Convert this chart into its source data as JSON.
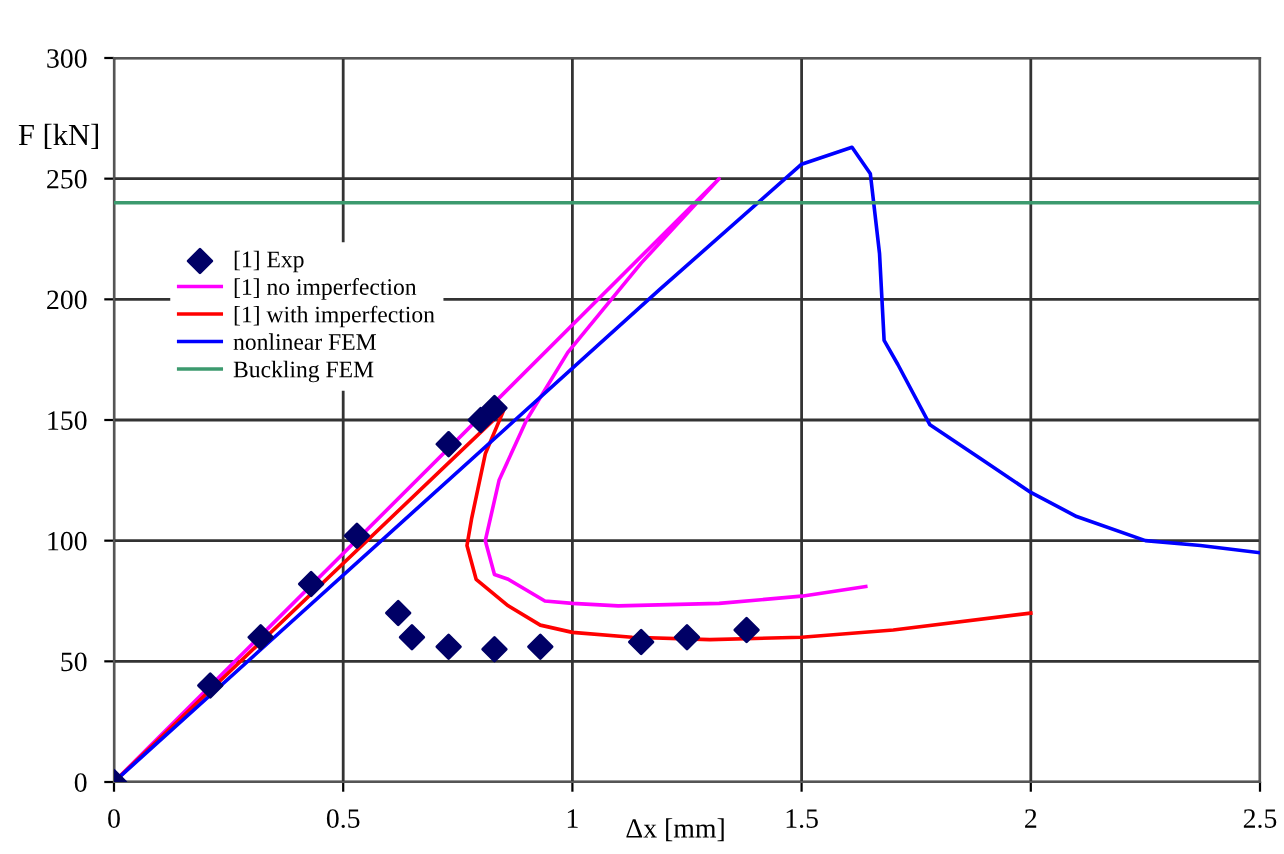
{
  "chart_data": {
    "type": "line",
    "xlabel": "Δx [mm]",
    "ylabel": "F [kN]",
    "xlim": [
      0,
      2.5
    ],
    "xticks": [
      0,
      0.5,
      1,
      1.5,
      2,
      2.5
    ],
    "ylim": [
      0,
      300
    ],
    "yticks": [
      0,
      50,
      100,
      150,
      200,
      250,
      300
    ],
    "grid": true,
    "legend": "left",
    "series": [
      {
        "name": "[1] Exp",
        "type": "scatter",
        "marker": "diamond",
        "color": "#000066",
        "x": [
          0,
          0.21,
          0.32,
          0.43,
          0.53,
          0.73,
          0.8,
          0.83,
          0.62,
          0.65,
          0.73,
          0.83,
          0.93,
          1.15,
          1.25,
          1.38
        ],
        "values": [
          0,
          40,
          60,
          82,
          102,
          140,
          150,
          155,
          70,
          60,
          56,
          55,
          56,
          58,
          60,
          63
        ]
      },
      {
        "name": "[1] no imperfection",
        "marker": "none",
        "color": "#ff00ff",
        "x": [
          0,
          1.32,
          1.15,
          0.99,
          0.9,
          0.84,
          0.81,
          0.83,
          0.86,
          0.94,
          1.0,
          1.1,
          1.32,
          1.5,
          1.64
        ],
        "values": [
          0,
          250,
          215,
          178,
          150,
          125,
          100,
          86,
          84,
          75,
          74,
          73,
          74,
          77,
          81
        ]
      },
      {
        "name": "[1] with imperfection",
        "marker": "none",
        "color": "#ff0000",
        "x": [
          0,
          0.85,
          0.81,
          0.78,
          0.77,
          0.79,
          0.86,
          0.93,
          1.0,
          1.13,
          1.3,
          1.5,
          1.7,
          2.0
        ],
        "values": [
          0,
          154,
          136,
          109,
          98,
          84,
          73,
          65,
          62,
          60,
          59,
          60,
          63,
          70
        ]
      },
      {
        "name": "nonlinear FEM",
        "marker": "none",
        "color": "#0000ff",
        "x": [
          0,
          1.19,
          1.5,
          1.61,
          1.65,
          1.67,
          1.68,
          1.71,
          1.78,
          1.89,
          2.0,
          2.1,
          2.25,
          2.37,
          2.5
        ],
        "values": [
          0,
          204,
          256,
          263,
          252,
          219,
          183,
          173,
          148,
          134,
          120,
          110,
          100,
          98,
          95
        ]
      },
      {
        "name": "Buckling FEM",
        "marker": "none",
        "color": "#3c9a6e",
        "x": [
          0,
          2.5
        ],
        "values": [
          240,
          240
        ]
      }
    ]
  }
}
